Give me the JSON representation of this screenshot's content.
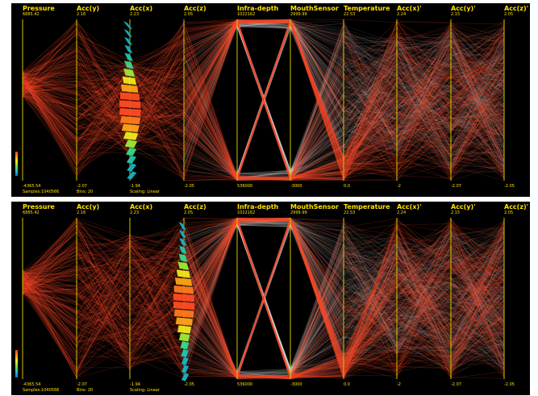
{
  "panels": [
    {
      "id": "top",
      "axes": [
        {
          "name": "Pressure",
          "max": "6885.42",
          "min": "-4365.54"
        },
        {
          "name": "Acc(y)",
          "max": "2.16",
          "min": "-2.07"
        },
        {
          "name": "Acc(x)",
          "max": "2.23",
          "min": "-1.94"
        },
        {
          "name": "Acc(z)",
          "max": "2.05",
          "min": "-2.05"
        },
        {
          "name": "Infra-depth",
          "max": "1022162",
          "min": "536000"
        },
        {
          "name": "MouthSensor",
          "max": "2999.99",
          "min": "-3000"
        },
        {
          "name": "Temperature",
          "max": "22.53",
          "min": "0.0"
        },
        {
          "name": "Acc(x)'",
          "max": "2.24",
          "min": "-2"
        },
        {
          "name": "Acc(y)'",
          "max": "2.15",
          "min": "-2.07"
        },
        {
          "name": "Acc(z)'",
          "max": "2.05",
          "min": "-2.05"
        }
      ],
      "status": {
        "samples": "Samples:1040566",
        "bins": "Bins:    20",
        "scaling": "Scaling: Linear"
      }
    },
    {
      "id": "bottom",
      "axes": [
        {
          "name": "Pressure",
          "max": "6885.42",
          "min": "-4365.54"
        },
        {
          "name": "Acc(y)",
          "max": "2.16",
          "min": "-2.07"
        },
        {
          "name": "Acc(x)",
          "max": "2.23",
          "min": "-1.94"
        },
        {
          "name": "Acc(z)",
          "max": "2.05",
          "min": "-2.05"
        },
        {
          "name": "Infra-depth",
          "max": "1022162",
          "min": "536000"
        },
        {
          "name": "MouthSensor",
          "max": "2999.99",
          "min": "-3000"
        },
        {
          "name": "Temperature",
          "max": "22.53",
          "min": "0.0"
        },
        {
          "name": "Acc(x)'",
          "max": "2.24",
          "min": "-2"
        },
        {
          "name": "Acc(y)'",
          "max": "2.15",
          "min": "-2.07"
        },
        {
          "name": "Acc(z)'",
          "max": "2.05",
          "min": "-2.05"
        }
      ],
      "status": {
        "samples": "Samples:1040566",
        "bins": "Bins:    20",
        "scaling": "Scaling: Linear"
      }
    }
  ],
  "colors": {
    "background": "#000000",
    "axis": "#d4c400",
    "label": "#ffe000",
    "highlight": "#ff4a2a",
    "context": "#ffffff"
  }
}
